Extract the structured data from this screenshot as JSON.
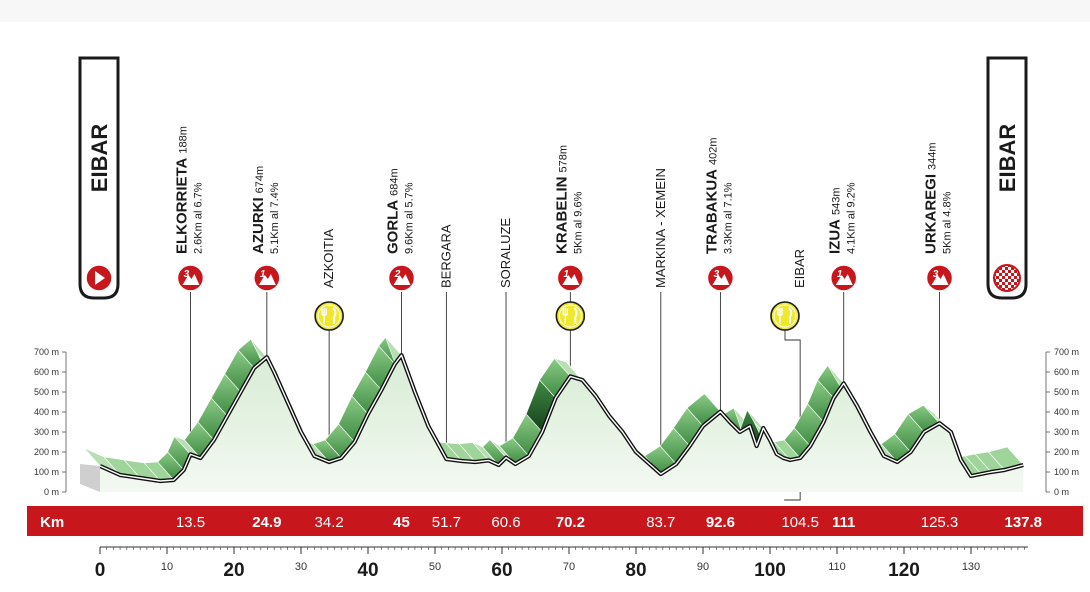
{
  "chart_data": {
    "type": "area",
    "title": "",
    "x_unit": "Km",
    "y_unit": "m",
    "xlim": [
      0,
      138.5
    ],
    "ylim": [
      0,
      700
    ],
    "y_ticks": [
      "0 m",
      "100 m",
      "200 m",
      "300 m",
      "400 m",
      "500 m",
      "600 m",
      "700 m"
    ],
    "y_tick_values": [
      0,
      100,
      200,
      300,
      400,
      500,
      600,
      700
    ],
    "x_ticks_major": [
      0,
      20,
      40,
      60,
      80,
      100,
      120
    ],
    "x_ticks_minor": [
      10,
      30,
      50,
      70,
      90,
      110,
      130
    ],
    "start": {
      "name": "EIBAR"
    },
    "finish": {
      "name": "EIBAR"
    },
    "profile": {
      "x": [
        0,
        3,
        6,
        9,
        11,
        12.5,
        13.5,
        15,
        17,
        19,
        21,
        23,
        24.9,
        26,
        28,
        30,
        32,
        34.2,
        36,
        38,
        40,
        42,
        44,
        45,
        47,
        49,
        51.7,
        54,
        56,
        58,
        59.5,
        60.6,
        62,
        64,
        66,
        68,
        70.2,
        72,
        74,
        76,
        78,
        80,
        83.7,
        86,
        88,
        90,
        92.6,
        94,
        95.5,
        97,
        98,
        99,
        100,
        101,
        102,
        103,
        104.5,
        106,
        108,
        109.5,
        111,
        113,
        115,
        117,
        119,
        121,
        123,
        125.3,
        127,
        128.5,
        130,
        131.5,
        133,
        135,
        137.8
      ],
      "y": [
        130,
        85,
        70,
        55,
        60,
        110,
        188,
        170,
        260,
        380,
        500,
        620,
        674,
        600,
        450,
        300,
        180,
        150,
        170,
        250,
        390,
        510,
        640,
        684,
        500,
        330,
        165,
        155,
        150,
        158,
        135,
        172,
        140,
        180,
        300,
        470,
        578,
        560,
        480,
        380,
        300,
        200,
        90,
        140,
        230,
        330,
        402,
        350,
        300,
        330,
        230,
        320,
        260,
        190,
        170,
        160,
        170,
        230,
        350,
        470,
        543,
        430,
        300,
        180,
        150,
        200,
        300,
        344,
        300,
        160,
        80,
        90,
        100,
        110,
        135
      ]
    },
    "climbs": [
      {
        "name": "ELKORRIETA",
        "altitude": "188m",
        "detail": "2.6Km al 6.7%",
        "category": "3",
        "km": 13.5
      },
      {
        "name": "AZURKI",
        "altitude": "674m",
        "detail": "5.1Km al 7.4%",
        "category": "1",
        "km": 24.9
      },
      {
        "name": "GORLA",
        "altitude": "684m",
        "detail": "9.6Km al 5.7%",
        "category": "2",
        "km": 45
      },
      {
        "name": "KRABELIN",
        "altitude": "578m",
        "detail": "5Km al 9.6%",
        "category": "1",
        "km": 70.2
      },
      {
        "name": "TRABAKUA",
        "altitude": "402m",
        "detail": "3.3Km al 7.1%",
        "category": "3",
        "km": 92.6
      },
      {
        "name": "IZUA",
        "altitude": "543m",
        "detail": "4.1Km al 9.2%",
        "category": "1",
        "km": 111
      },
      {
        "name": "URKAREGI",
        "altitude": "344m",
        "detail": "5Km al 4.8%",
        "category": "3",
        "km": 125.3
      }
    ],
    "towns": [
      {
        "name": "AZKOITIA",
        "km": 34.2,
        "feed": true
      },
      {
        "name": "BERGARA",
        "km": 51.7,
        "feed": false
      },
      {
        "name": "SORALUZE",
        "km": 60.6,
        "feed": false
      },
      {
        "name": "MARKINA - XEMEIN",
        "km": 83.7,
        "feed": false
      },
      {
        "name": "EIBAR",
        "km": 104.5,
        "feed": true
      }
    ],
    "feed_zones_km": [
      34.2,
      70.2,
      104.5
    ],
    "km_markers": [
      "13.5",
      "24.9",
      "34.2",
      "45",
      "51.7",
      "60.6",
      "70.2",
      "83.7",
      "92.6",
      "104.5",
      "111",
      "125.3",
      "137.8"
    ],
    "km_marker_bold": [
      false,
      true,
      false,
      true,
      false,
      false,
      true,
      false,
      true,
      false,
      true,
      false,
      true
    ],
    "colors": {
      "band": "#c8171c",
      "category_badge": "#c8171c",
      "feed_badge": "#f0e82a",
      "area_light": "#e4f2e2",
      "slope_medium": "#6fb86c",
      "slope_dark": "#1f5a26",
      "profile_line": "#111111"
    }
  }
}
